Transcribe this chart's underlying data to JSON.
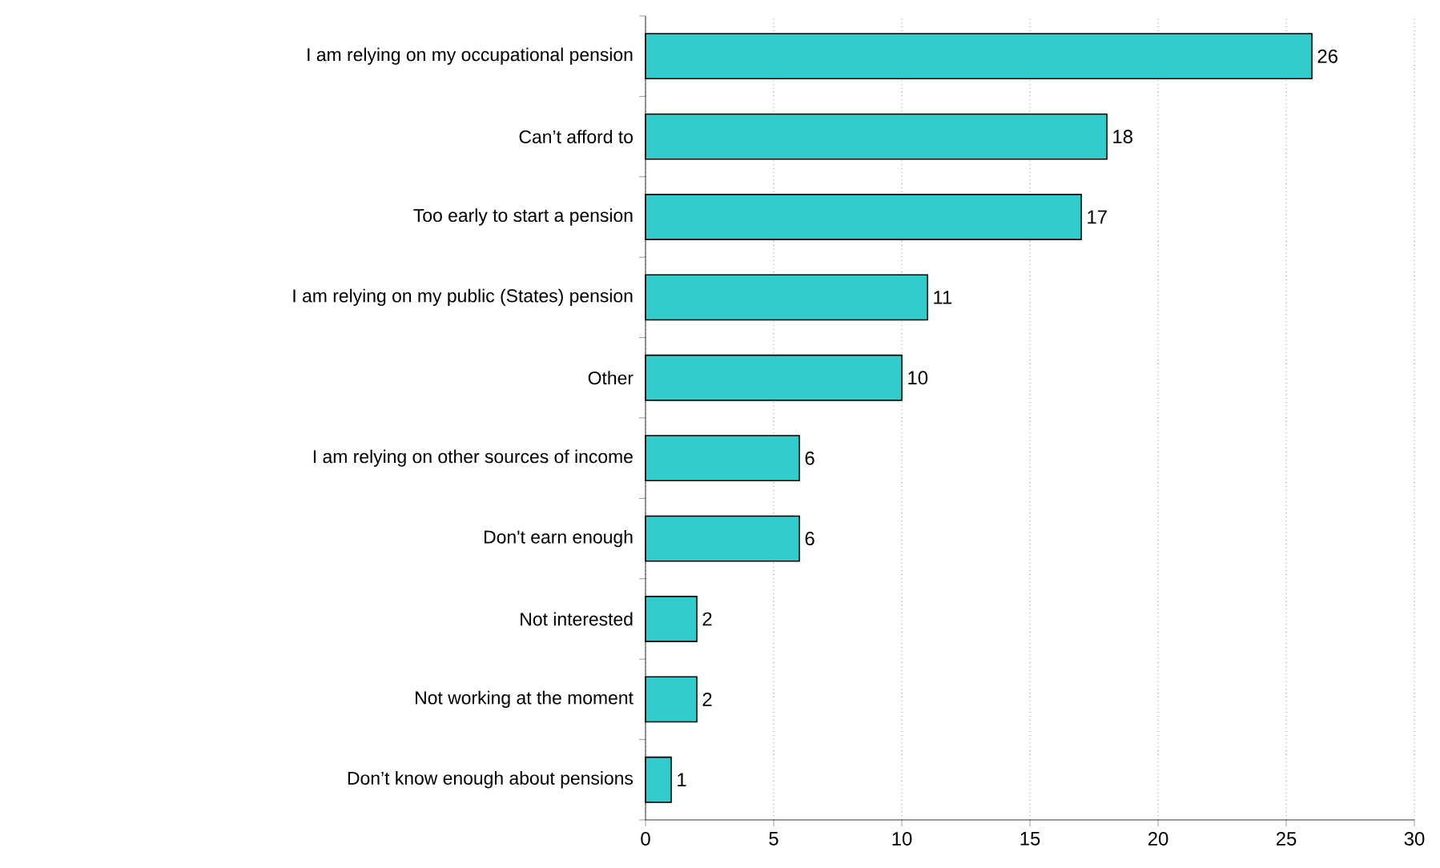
{
  "chart_data": {
    "type": "bar",
    "orientation": "horizontal",
    "categories": [
      "I am relying on my occupational pension",
      "Can’t afford to",
      "Too early to start a pension",
      "I am relying on my public (States) pension",
      "Other",
      "I am relying on other sources of income",
      "Don't earn enough",
      "Not interested",
      "Not working at the moment",
      "Don’t know enough about pensions"
    ],
    "values": [
      26,
      18,
      17,
      11,
      10,
      6,
      6,
      2,
      2,
      1
    ],
    "color": "#33cccc",
    "xlim": [
      0,
      30
    ],
    "xticks": [
      0,
      5,
      10,
      15,
      20,
      25,
      30
    ],
    "grid": "x",
    "data_labels": true
  }
}
